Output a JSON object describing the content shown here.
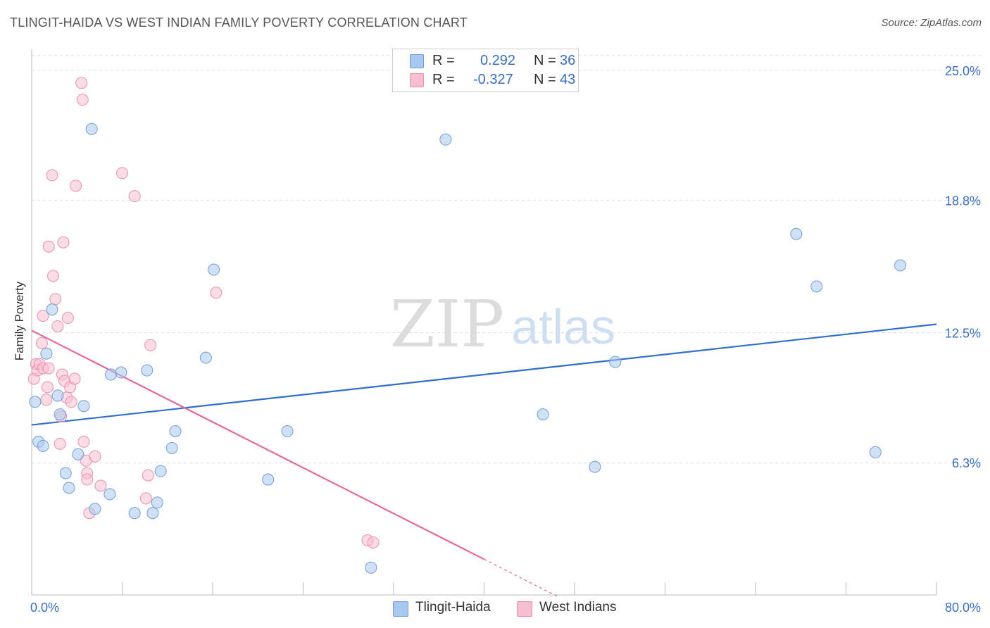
{
  "header": {
    "title": "TLINGIT-HAIDA VS WEST INDIAN FAMILY POVERTY CORRELATION CHART",
    "source": "Source: ZipAtlas.com"
  },
  "watermark": {
    "zip": "ZIP",
    "atlas": "atlas"
  },
  "legend_top": {
    "rows": [
      {
        "r_label": "R =",
        "r_value": "0.292",
        "n_label": "N =",
        "n_value": "36"
      },
      {
        "r_label": "R =",
        "r_value": "-0.327",
        "n_label": "N =",
        "n_value": "43"
      }
    ]
  },
  "legend_bottom": {
    "items": [
      {
        "label": "Tlingit-Haida"
      },
      {
        "label": "West Indians"
      }
    ]
  },
  "colors": {
    "blue_fill": "#a9c8ef",
    "blue_stroke": "#6f9fdc",
    "blue_line": "#2f6fcc",
    "pink_fill": "#f6bfd0",
    "pink_stroke": "#ec8fae",
    "pink_line": "#e8679a",
    "tick_text": "#3a6fc4",
    "grid": "#dddddd"
  },
  "chart_data": {
    "type": "scatter",
    "title": "TLINGIT-HAIDA VS WEST INDIAN FAMILY POVERTY CORRELATION CHART",
    "xlabel": "",
    "ylabel": "Family Poverty",
    "xlim": [
      0,
      80
    ],
    "ylim": [
      0,
      26.0
    ],
    "x_tick_labels": [
      "0.0%",
      "80.0%"
    ],
    "y_ticks": [
      6.3,
      12.5,
      18.8,
      25.0
    ],
    "y_tick_labels": [
      "6.3%",
      "12.5%",
      "18.8%",
      "25.0%"
    ],
    "grid": true,
    "legend_position": "top-center",
    "series": [
      {
        "name": "Tlingit-Haida",
        "color": "blue",
        "r": 0.292,
        "n": 36,
        "points": [
          [
            0.3,
            9.2
          ],
          [
            0.6,
            7.3
          ],
          [
            1.0,
            7.1
          ],
          [
            1.3,
            11.5
          ],
          [
            1.8,
            13.6
          ],
          [
            2.3,
            9.5
          ],
          [
            2.5,
            8.6
          ],
          [
            3.0,
            5.8
          ],
          [
            3.3,
            5.1
          ],
          [
            4.1,
            6.7
          ],
          [
            4.6,
            9.0
          ],
          [
            5.6,
            4.1
          ],
          [
            5.3,
            22.2
          ],
          [
            7.0,
            10.5
          ],
          [
            6.9,
            4.8
          ],
          [
            7.9,
            10.6
          ],
          [
            9.1,
            3.9
          ],
          [
            10.2,
            10.7
          ],
          [
            10.7,
            3.9
          ],
          [
            11.1,
            4.4
          ],
          [
            11.4,
            5.9
          ],
          [
            12.4,
            7.0
          ],
          [
            12.7,
            7.8
          ],
          [
            15.4,
            11.3
          ],
          [
            16.1,
            15.5
          ],
          [
            20.9,
            5.5
          ],
          [
            22.6,
            7.8
          ],
          [
            30.0,
            1.3
          ],
          [
            36.6,
            21.7
          ],
          [
            45.2,
            8.6
          ],
          [
            49.8,
            6.1
          ],
          [
            51.6,
            11.1
          ],
          [
            67.6,
            17.2
          ],
          [
            69.4,
            14.7
          ],
          [
            76.8,
            15.7
          ],
          [
            74.6,
            6.8
          ]
        ],
        "trend": {
          "x": [
            0,
            80
          ],
          "y": [
            8.1,
            12.9
          ]
        }
      },
      {
        "name": "West Indians",
        "color": "pink",
        "r": -0.327,
        "n": 43,
        "points": [
          [
            0.2,
            10.3
          ],
          [
            0.4,
            11.0
          ],
          [
            0.5,
            10.7
          ],
          [
            0.7,
            11.0
          ],
          [
            0.9,
            12.0
          ],
          [
            1.0,
            10.8
          ],
          [
            1.0,
            13.3
          ],
          [
            1.3,
            9.3
          ],
          [
            1.4,
            9.9
          ],
          [
            1.5,
            10.8
          ],
          [
            1.5,
            16.6
          ],
          [
            1.8,
            20.0
          ],
          [
            1.9,
            15.2
          ],
          [
            2.1,
            14.1
          ],
          [
            2.3,
            12.8
          ],
          [
            2.5,
            7.2
          ],
          [
            2.6,
            8.5
          ],
          [
            2.7,
            10.5
          ],
          [
            2.8,
            16.8
          ],
          [
            2.9,
            10.2
          ],
          [
            3.1,
            9.4
          ],
          [
            3.2,
            13.2
          ],
          [
            3.4,
            9.9
          ],
          [
            3.5,
            9.2
          ],
          [
            3.8,
            10.3
          ],
          [
            3.9,
            19.5
          ],
          [
            4.4,
            24.4
          ],
          [
            4.5,
            23.6
          ],
          [
            4.6,
            7.3
          ],
          [
            4.8,
            6.4
          ],
          [
            4.9,
            5.8
          ],
          [
            4.9,
            5.5
          ],
          [
            5.1,
            3.9
          ],
          [
            5.6,
            6.6
          ],
          [
            6.1,
            5.2
          ],
          [
            8.0,
            20.1
          ],
          [
            9.1,
            19.0
          ],
          [
            10.1,
            4.6
          ],
          [
            10.3,
            5.7
          ],
          [
            10.5,
            11.9
          ],
          [
            16.3,
            14.4
          ],
          [
            29.7,
            2.6
          ],
          [
            30.2,
            2.5
          ]
        ],
        "trend": {
          "x": [
            0,
            40
          ],
          "y": [
            12.6,
            1.7
          ]
        },
        "trend_dashed": {
          "x": [
            40,
            46.6
          ],
          "y": [
            1.7,
            -0.1
          ]
        }
      }
    ]
  }
}
